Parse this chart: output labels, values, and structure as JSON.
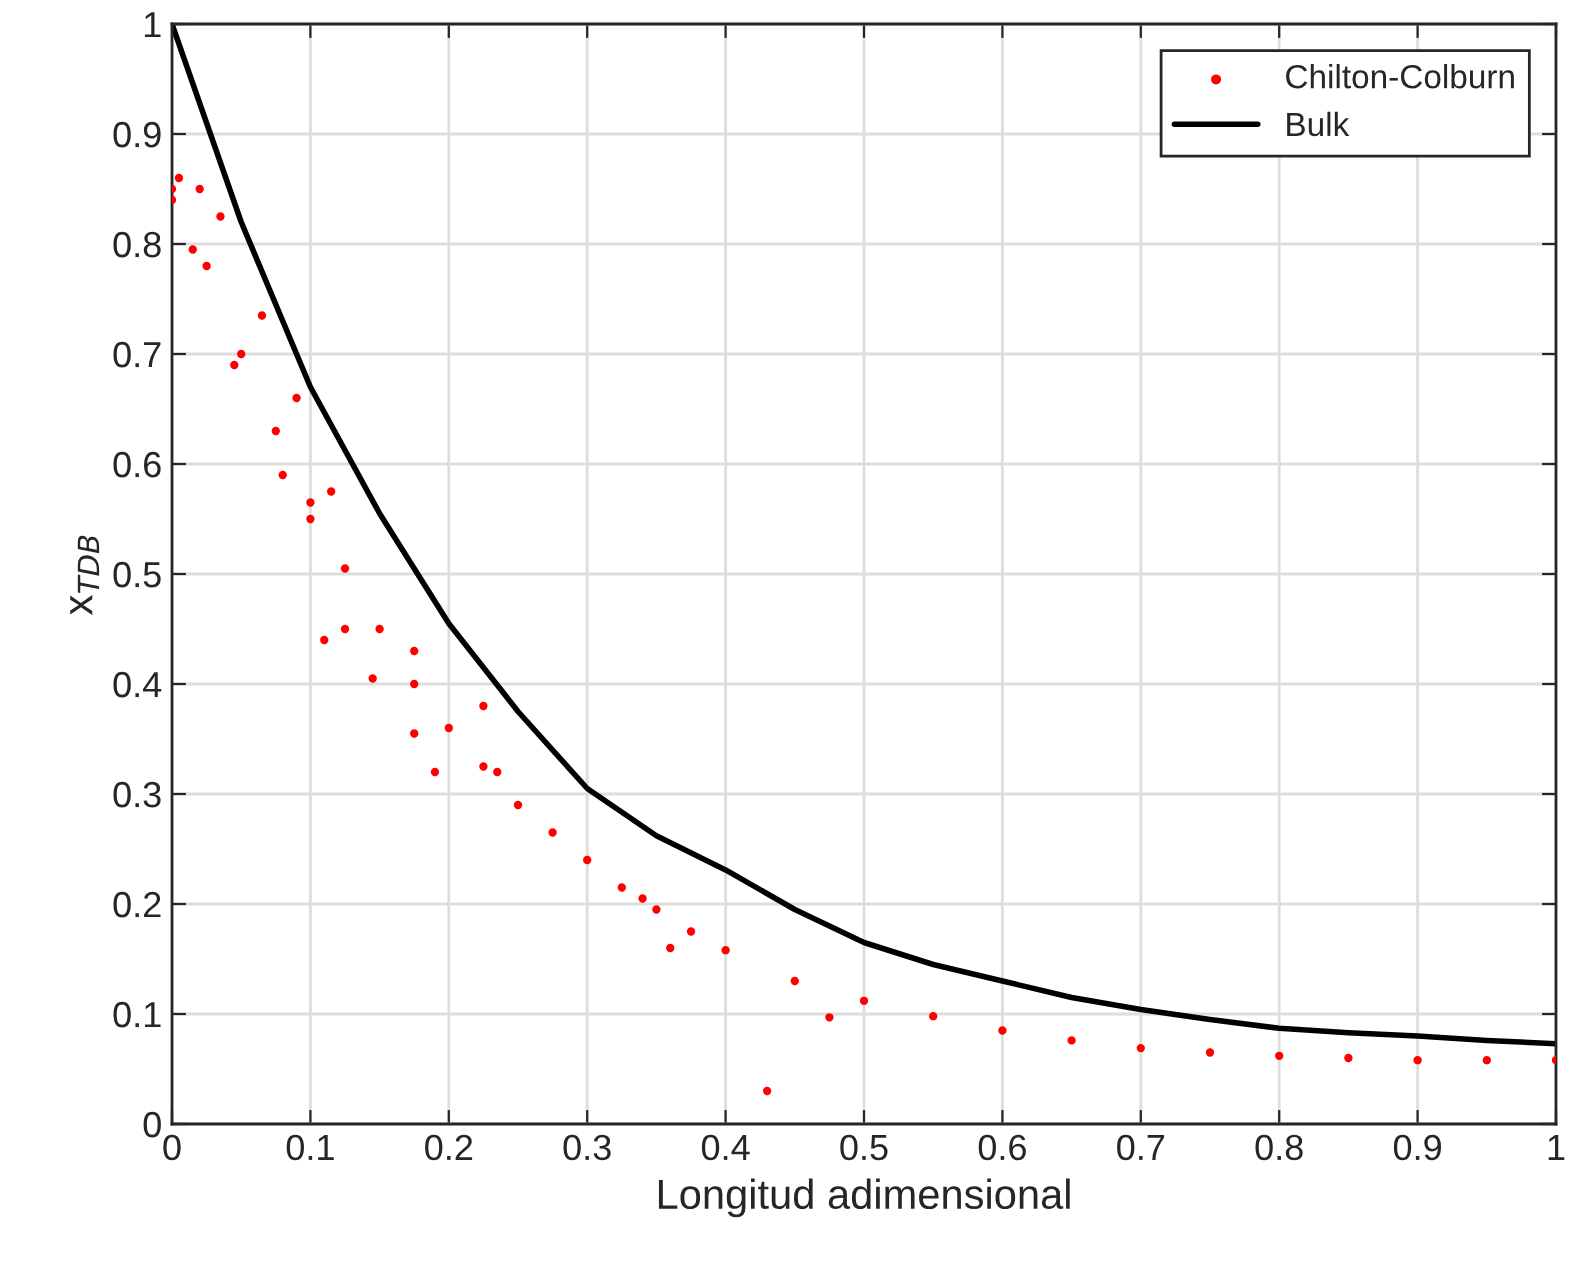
{
  "chart_data": {
    "type": "scatter",
    "xlabel": "Longitud adimensional",
    "ylabel": "x$_{TDB}$",
    "xlim": [
      0,
      1
    ],
    "ylim": [
      0,
      1
    ],
    "xticks": [
      0,
      0.1,
      0.2,
      0.3,
      0.4,
      0.5,
      0.6,
      0.7,
      0.8,
      0.9,
      1
    ],
    "yticks": [
      0,
      0.1,
      0.2,
      0.3,
      0.4,
      0.5,
      0.6,
      0.7,
      0.8,
      0.9,
      1
    ],
    "grid": true,
    "legend": "top right",
    "series": [
      {
        "name": "Chilton-Colburn",
        "marker": "circle",
        "color": "#ff0000",
        "x": [
          0,
          0,
          0.005,
          0.015,
          0.02,
          0.025,
          0.035,
          0.045,
          0.05,
          0.065,
          0.075,
          0.08,
          0.09,
          0.1,
          0.1,
          0.11,
          0.115,
          0.125,
          0.125,
          0.145,
          0.15,
          0.175,
          0.175,
          0.175,
          0.19,
          0.2,
          0.225,
          0.225,
          0.235,
          0.25,
          0.275,
          0.3,
          0.325,
          0.34,
          0.35,
          0.36,
          0.375,
          0.4,
          0.43,
          0.45,
          0.475,
          0.5,
          0.55,
          0.6,
          0.65,
          0.7,
          0.75,
          0.8,
          0.85,
          0.9,
          0.95,
          1.0
        ],
        "values": [
          0.84,
          0.85,
          0.86,
          0.795,
          0.85,
          0.78,
          0.825,
          0.69,
          0.7,
          0.735,
          0.63,
          0.59,
          0.66,
          0.565,
          0.55,
          0.44,
          0.575,
          0.505,
          0.45,
          0.405,
          0.45,
          0.4,
          0.43,
          0.355,
          0.32,
          0.36,
          0.325,
          0.38,
          0.32,
          0.29,
          0.265,
          0.24,
          0.215,
          0.205,
          0.195,
          0.16,
          0.175,
          0.158,
          0.03,
          0.13,
          0.097,
          0.112,
          0.098,
          0.085,
          0.076,
          0.069,
          0.065,
          0.062,
          0.06,
          0.058,
          0.058,
          0.058
        ]
      },
      {
        "name": "Bulk",
        "type": "line",
        "marker": "none",
        "line_style": "solid",
        "color": "#000000",
        "x": [
          0,
          0.05,
          0.1,
          0.15,
          0.2,
          0.25,
          0.3,
          0.35,
          0.4,
          0.45,
          0.5,
          0.55,
          0.6,
          0.65,
          0.7,
          0.75,
          0.8,
          0.85,
          0.9,
          0.95,
          1.0
        ],
        "values": [
          1,
          0.82,
          0.67,
          0.555,
          0.455,
          0.375,
          0.305,
          0.262,
          0.231,
          0.195,
          0.165,
          0.145,
          0.13,
          0.115,
          0.104,
          0.095,
          0.087,
          0.083,
          0.08,
          0.076,
          0.073
        ]
      }
    ]
  }
}
